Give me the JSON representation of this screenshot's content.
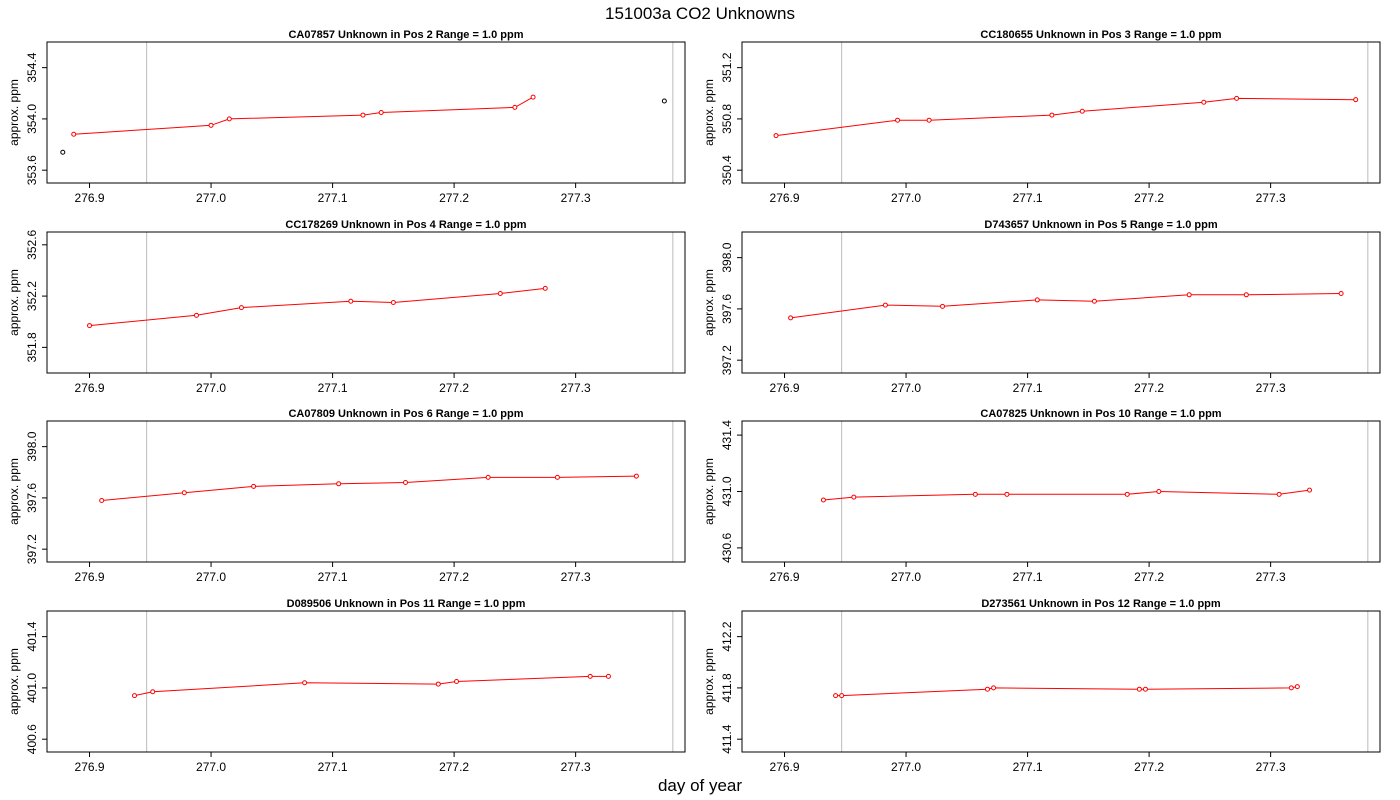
{
  "title": "151003a  CO2 Unknowns",
  "xlabel": "day of year",
  "colors": {
    "series": "#ff0000",
    "outlier": "#000000",
    "vline": "#bbbbbb",
    "frame": "#000000"
  },
  "chart_data": [
    {
      "type": "line",
      "title": "CA07857    Unknown in Pos 2         Range = 1.0 ppm",
      "ylabel": "approx. ppm",
      "xlim": [
        276.865,
        277.39
      ],
      "ylim": [
        353.5,
        354.6
      ],
      "xticks": [
        276.9,
        277.0,
        277.1,
        277.2,
        277.3
      ],
      "xtick_labels": [
        "276.9",
        "277.0",
        "277.1",
        "277.2",
        "277.3"
      ],
      "yticks": [
        353.6,
        354.0,
        354.4
      ],
      "ytick_labels": [
        "353.6",
        "354.0",
        "354.4"
      ],
      "vlines": [
        276.947,
        277.38
      ],
      "series": [
        {
          "x": [
            276.887,
            277.0,
            277.015,
            277.125,
            277.14,
            277.25,
            277.265
          ],
          "y": [
            353.88,
            353.95,
            354.0,
            354.03,
            354.05,
            354.09,
            354.17
          ]
        }
      ],
      "outliers": [
        {
          "x": 276.878,
          "y": 353.74
        },
        {
          "x": 277.373,
          "y": 354.14
        }
      ]
    },
    {
      "type": "line",
      "title": "CC180655    Unknown in Pos 3         Range = 1.0 ppm",
      "ylabel": "approx. ppm",
      "xlim": [
        276.865,
        277.39
      ],
      "ylim": [
        350.3,
        351.4
      ],
      "xticks": [
        276.9,
        277.0,
        277.1,
        277.2,
        277.3
      ],
      "xtick_labels": [
        "276.9",
        "277.0",
        "277.1",
        "277.2",
        "277.3"
      ],
      "yticks": [
        350.4,
        350.8,
        351.2
      ],
      "ytick_labels": [
        "350.4",
        "350.8",
        "351.2"
      ],
      "vlines": [
        276.947,
        277.38
      ],
      "series": [
        {
          "x": [
            276.893,
            276.993,
            277.019,
            277.12,
            277.145,
            277.245,
            277.272,
            277.37
          ],
          "y": [
            350.67,
            350.79,
            350.79,
            350.83,
            350.86,
            350.93,
            350.96,
            350.95
          ]
        }
      ],
      "outliers": []
    },
    {
      "type": "line",
      "title": "CC178269    Unknown in Pos 4         Range = 1.0 ppm",
      "ylabel": "approx. ppm",
      "xlim": [
        276.865,
        277.39
      ],
      "ylim": [
        351.6,
        352.7
      ],
      "xticks": [
        276.9,
        277.0,
        277.1,
        277.2,
        277.3
      ],
      "xtick_labels": [
        "276.9",
        "277.0",
        "277.1",
        "277.2",
        "277.3"
      ],
      "yticks": [
        351.8,
        352.2,
        352.6
      ],
      "ytick_labels": [
        "351.8",
        "352.2",
        "352.6"
      ],
      "vlines": [
        276.947,
        277.38
      ],
      "series": [
        {
          "x": [
            276.9,
            276.988,
            277.025,
            277.115,
            277.15,
            277.238,
            277.275
          ],
          "y": [
            351.97,
            352.05,
            352.11,
            352.16,
            352.15,
            352.22,
            352.26
          ]
        }
      ],
      "outliers": []
    },
    {
      "type": "line",
      "title": "D743657    Unknown in Pos 5         Range = 1.0 ppm",
      "ylabel": "approx. ppm",
      "xlim": [
        276.865,
        277.39
      ],
      "ylim": [
        397.1,
        398.2
      ],
      "xticks": [
        276.9,
        277.0,
        277.1,
        277.2,
        277.3
      ],
      "xtick_labels": [
        "276.9",
        "277.0",
        "277.1",
        "277.2",
        "277.3"
      ],
      "yticks": [
        397.2,
        397.6,
        398.0
      ],
      "ytick_labels": [
        "397.2",
        "397.6",
        "398.0"
      ],
      "vlines": [
        276.947,
        277.38
      ],
      "series": [
        {
          "x": [
            276.905,
            276.983,
            277.03,
            277.108,
            277.155,
            277.233,
            277.28,
            277.358
          ],
          "y": [
            397.53,
            397.63,
            397.62,
            397.67,
            397.66,
            397.71,
            397.71,
            397.72
          ]
        }
      ],
      "outliers": []
    },
    {
      "type": "line",
      "title": "CA07809    Unknown in Pos 6         Range = 1.0 ppm",
      "ylabel": "approx. ppm",
      "xlim": [
        276.865,
        277.39
      ],
      "ylim": [
        397.1,
        398.2
      ],
      "xticks": [
        276.9,
        277.0,
        277.1,
        277.2,
        277.3
      ],
      "xtick_labels": [
        "276.9",
        "277.0",
        "277.1",
        "277.2",
        "277.3"
      ],
      "yticks": [
        397.2,
        397.6,
        398.0
      ],
      "ytick_labels": [
        "397.2",
        "397.6",
        "398.0"
      ],
      "vlines": [
        276.947,
        277.38
      ],
      "series": [
        {
          "x": [
            276.91,
            276.978,
            277.035,
            277.105,
            277.16,
            277.228,
            277.285,
            277.35
          ],
          "y": [
            397.58,
            397.64,
            397.69,
            397.71,
            397.72,
            397.76,
            397.76,
            397.77
          ]
        }
      ],
      "outliers": []
    },
    {
      "type": "line",
      "title": "CA07825    Unknown in Pos 10         Range = 1.0 ppm",
      "ylabel": "approx. ppm",
      "xlim": [
        276.865,
        277.39
      ],
      "ylim": [
        430.5,
        431.5
      ],
      "xticks": [
        276.9,
        277.0,
        277.1,
        277.2,
        277.3
      ],
      "xtick_labels": [
        "276.9",
        "277.0",
        "277.1",
        "277.2",
        "277.3"
      ],
      "yticks": [
        430.6,
        431.0,
        431.4
      ],
      "ytick_labels": [
        "430.6",
        "431.0",
        "431.4"
      ],
      "vlines": [
        276.947,
        277.38
      ],
      "series": [
        {
          "x": [
            276.932,
            276.957,
            277.057,
            277.083,
            277.182,
            277.208,
            277.307,
            277.332
          ],
          "y": [
            430.94,
            430.96,
            430.98,
            430.98,
            430.98,
            431.0,
            430.98,
            431.01
          ]
        }
      ],
      "outliers": []
    },
    {
      "type": "line",
      "title": "D089506    Unknown in Pos 11         Range = 1.0 ppm",
      "ylabel": "approx. ppm",
      "xlim": [
        276.865,
        277.39
      ],
      "ylim": [
        400.5,
        401.6
      ],
      "xticks": [
        276.9,
        277.0,
        277.1,
        277.2,
        277.3
      ],
      "xtick_labels": [
        "276.9",
        "277.0",
        "277.1",
        "277.2",
        "277.3"
      ],
      "yticks": [
        400.6,
        401.0,
        401.4
      ],
      "ytick_labels": [
        "400.6",
        "401.0",
        "401.4"
      ],
      "vlines": [
        276.947,
        277.38
      ],
      "series": [
        {
          "x": [
            276.937,
            276.952,
            277.077,
            277.187,
            277.202,
            277.312,
            277.327
          ],
          "y": [
            400.94,
            400.97,
            401.04,
            401.03,
            401.05,
            401.09,
            401.09
          ]
        }
      ],
      "outliers": []
    },
    {
      "type": "line",
      "title": "D273561    Unknown in Pos 12         Range = 1.0 ppm",
      "ylabel": "approx. ppm",
      "xlim": [
        276.865,
        277.39
      ],
      "ylim": [
        411.3,
        412.4
      ],
      "xticks": [
        276.9,
        277.0,
        277.1,
        277.2,
        277.3
      ],
      "xtick_labels": [
        "276.9",
        "277.0",
        "277.1",
        "277.2",
        "277.3"
      ],
      "yticks": [
        411.4,
        411.8,
        412.2
      ],
      "ytick_labels": [
        "411.4",
        "411.8",
        "412.2"
      ],
      "vlines": [
        276.947,
        277.38
      ],
      "series": [
        {
          "x": [
            276.942,
            276.947,
            277.067,
            277.072,
            277.192,
            277.197,
            277.317,
            277.322
          ],
          "y": [
            411.74,
            411.74,
            411.79,
            411.8,
            411.79,
            411.79,
            411.8,
            411.81
          ]
        }
      ],
      "outliers": []
    }
  ]
}
